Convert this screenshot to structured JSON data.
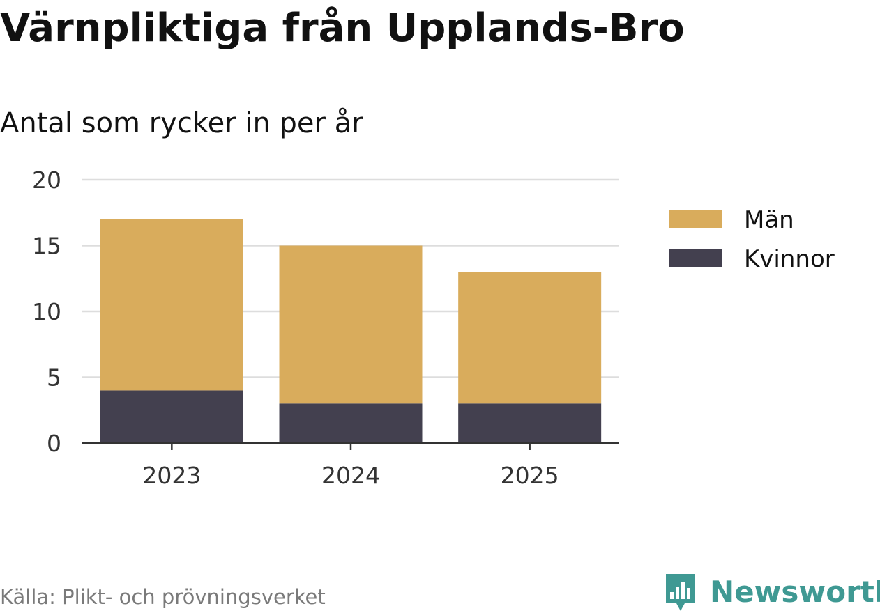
{
  "title": "Värnpliktiga från Upplands-Bro",
  "subtitle": "Antal som rycker in per år",
  "source": "Källa: Plikt- och prövningsverket",
  "brand": {
    "name": "Newsworthy",
    "color": "#3f9993",
    "icon": "newsworthy-logo-icon"
  },
  "chart_data": {
    "type": "bar",
    "stacked": true,
    "title": "Värnpliktiga från Upplands-Bro",
    "subtitle": "Antal som rycker in per år",
    "xlabel": "",
    "ylabel": "",
    "categories": [
      "2023",
      "2024",
      "2025"
    ],
    "series": [
      {
        "name": "Kvinnor",
        "color": "#43404f",
        "values": [
          4,
          3,
          3
        ]
      },
      {
        "name": "Män",
        "color": "#d9ac5c",
        "values": [
          13,
          12,
          10
        ]
      }
    ],
    "ylim": [
      0,
      20
    ],
    "yticks": [
      0,
      5,
      10,
      15,
      20
    ],
    "grid": true,
    "legend": {
      "placement": "right",
      "order": [
        "Män",
        "Kvinnor"
      ]
    }
  }
}
